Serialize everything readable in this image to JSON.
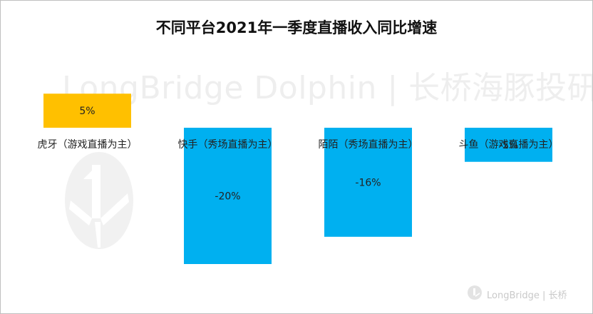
{
  "chart_data": {
    "type": "bar",
    "title": "不同平台2021年一季度直播收入同比增速",
    "categories": [
      "虎牙（游戏直播为主）",
      "快手（秀场直播为主）",
      "陌陌（秀场直播为主）",
      "斗鱼（游戏直播为主）"
    ],
    "values": [
      5,
      -20,
      -16,
      -5
    ],
    "value_labels": [
      "5%",
      "-20%",
      "-16%",
      "-5%"
    ],
    "colors": {
      "positive": "#ffc000",
      "negative": "#00b0f0"
    },
    "xlabel": "",
    "ylabel": "",
    "grid": false,
    "legend": "none"
  },
  "watermark": {
    "text": "LongBridge Dolphin | 长桥海豚投研",
    "footer": "LongBridge | 长桥"
  }
}
